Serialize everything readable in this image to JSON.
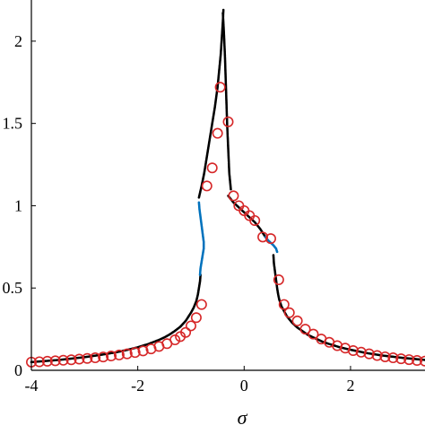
{
  "chart_data": {
    "type": "scatter",
    "title": "",
    "xlabel": "σ",
    "ylabel": "",
    "xlim": [
      -4,
      3.4
    ],
    "ylim": [
      0,
      2.25
    ],
    "xticks": [
      -4,
      -2,
      0,
      2
    ],
    "yticks": [
      0,
      0.5,
      1,
      1.5,
      2
    ],
    "xtick_labels": [
      "-4",
      "-2",
      "0",
      "2"
    ],
    "ytick_labels": [
      "0",
      "0.5",
      "1",
      "1.5",
      "2"
    ],
    "grid": false,
    "legend": "none",
    "series": [
      {
        "style": "dots",
        "color": "#000000",
        "x": [
          -4.0,
          -3.8,
          -3.6,
          -3.4,
          -3.2,
          -3.0,
          -2.8,
          -2.6,
          -2.4,
          -2.2,
          -2.0,
          -1.8,
          -1.6,
          -1.5,
          -1.4,
          -1.3,
          -1.2,
          -1.1,
          -1.0,
          -0.95,
          -0.9,
          -0.87,
          -0.85,
          -0.83,
          -0.82
        ],
        "y": [
          0.05,
          0.055,
          0.06,
          0.066,
          0.073,
          0.08,
          0.089,
          0.099,
          0.11,
          0.124,
          0.14,
          0.16,
          0.185,
          0.2,
          0.218,
          0.24,
          0.265,
          0.3,
          0.35,
          0.38,
          0.42,
          0.46,
          0.5,
          0.54,
          0.58
        ]
      },
      {
        "style": "dots",
        "color": "#000000",
        "x": [
          -0.85,
          -0.8,
          -0.75,
          -0.7,
          -0.65,
          -0.6,
          -0.55,
          -0.5,
          -0.47,
          -0.44,
          -0.42,
          -0.4,
          -0.39
        ],
        "y": [
          1.05,
          1.12,
          1.2,
          1.3,
          1.4,
          1.5,
          1.6,
          1.72,
          1.82,
          1.92,
          2.02,
          2.12,
          2.19
        ]
      },
      {
        "style": "dots",
        "color": "#0072BD",
        "x": [
          -0.85,
          -0.84,
          -0.82,
          -0.8,
          -0.78,
          -0.76,
          -0.76,
          -0.78,
          -0.8,
          -0.82,
          -0.83
        ],
        "y": [
          1.02,
          0.98,
          0.93,
          0.88,
          0.83,
          0.78,
          0.74,
          0.7,
          0.66,
          0.62,
          0.58
        ]
      },
      {
        "style": "dots",
        "color": "#000000",
        "x": [
          -0.4,
          -0.38,
          -0.36,
          -0.34,
          -0.32,
          -0.3,
          -0.28,
          -0.25
        ],
        "y": [
          2.17,
          2.05,
          1.9,
          1.7,
          1.5,
          1.35,
          1.2,
          1.1
        ]
      },
      {
        "style": "dots",
        "color": "#000000",
        "x": [
          -0.3,
          -0.2,
          -0.1,
          0.0,
          0.1,
          0.2,
          0.3,
          0.4
        ],
        "y": [
          1.06,
          1.02,
          0.99,
          0.96,
          0.93,
          0.9,
          0.86,
          0.81
        ]
      },
      {
        "style": "dots",
        "color": "#0072BD",
        "x": [
          0.4,
          0.45,
          0.5,
          0.55,
          0.6,
          0.62
        ],
        "y": [
          0.81,
          0.79,
          0.775,
          0.76,
          0.74,
          0.72
        ]
      },
      {
        "style": "dots",
        "color": "#000000",
        "x": [
          0.55,
          0.56,
          0.58,
          0.6,
          0.62,
          0.64,
          0.66,
          0.7,
          0.75,
          0.8,
          0.9,
          1.0,
          1.2,
          1.5,
          1.8,
          2.0,
          2.3,
          2.6,
          3.0,
          3.4
        ],
        "y": [
          0.7,
          0.65,
          0.6,
          0.55,
          0.5,
          0.46,
          0.43,
          0.39,
          0.36,
          0.33,
          0.29,
          0.26,
          0.215,
          0.17,
          0.14,
          0.125,
          0.105,
          0.09,
          0.075,
          0.063
        ]
      },
      {
        "style": "circles",
        "color": "#D62728",
        "x": [
          -4.0,
          -3.85,
          -3.7,
          -3.55,
          -3.4,
          -3.25,
          -3.1,
          -2.95,
          -2.8,
          -2.65,
          -2.5,
          -2.35,
          -2.2,
          -2.05,
          -1.9,
          -1.75,
          -1.6,
          -1.45,
          -1.3,
          -1.2,
          -1.1,
          -1.0,
          -0.9,
          -0.8,
          -0.7,
          -0.6,
          -0.5,
          -0.45,
          -0.3,
          -0.2,
          -0.1,
          0.0,
          0.1,
          0.2,
          0.35,
          0.5,
          0.65,
          0.75,
          0.85,
          1.0,
          1.15,
          1.3,
          1.45,
          1.6,
          1.75,
          1.9,
          2.05,
          2.2,
          2.35,
          2.5,
          2.65,
          2.8,
          2.95,
          3.1,
          3.25,
          3.4
        ],
        "y": [
          0.05,
          0.052,
          0.055,
          0.058,
          0.061,
          0.064,
          0.068,
          0.072,
          0.076,
          0.081,
          0.087,
          0.093,
          0.1,
          0.108,
          0.118,
          0.13,
          0.145,
          0.162,
          0.185,
          0.205,
          0.23,
          0.27,
          0.32,
          0.4,
          1.12,
          1.23,
          1.44,
          1.72,
          1.51,
          1.06,
          1.0,
          0.97,
          0.94,
          0.91,
          0.81,
          0.8,
          0.55,
          0.4,
          0.35,
          0.3,
          0.25,
          0.22,
          0.19,
          0.17,
          0.15,
          0.135,
          0.12,
          0.11,
          0.1,
          0.09,
          0.082,
          0.076,
          0.07,
          0.065,
          0.06,
          0.056
        ]
      }
    ]
  }
}
